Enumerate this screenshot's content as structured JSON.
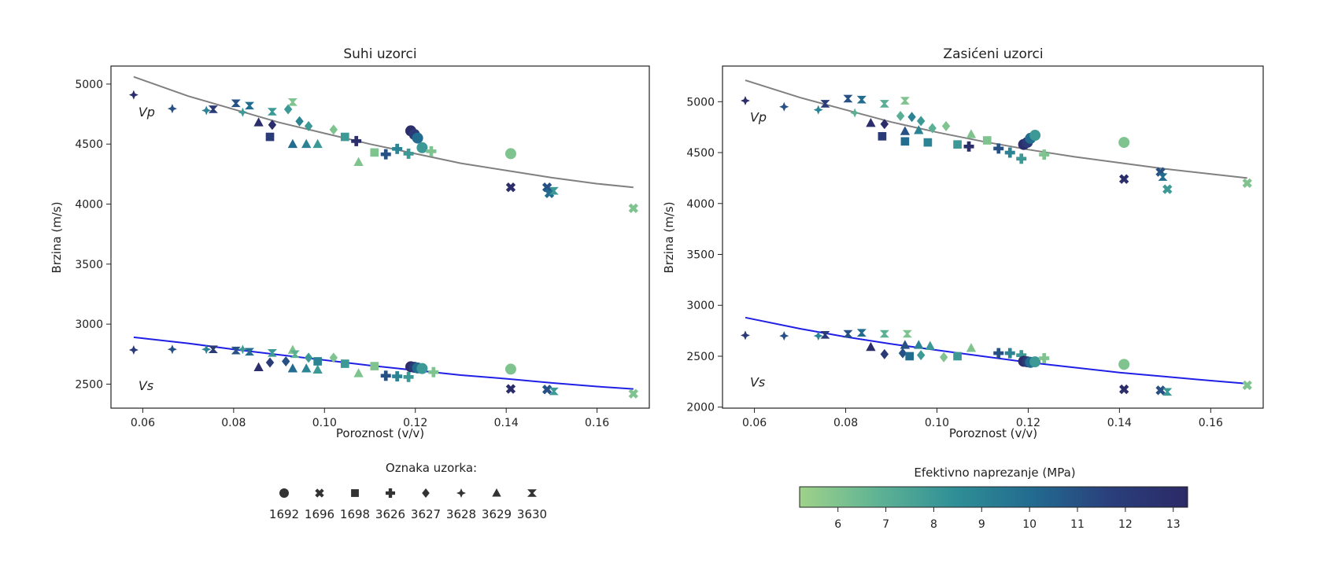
{
  "colors": {
    "fit_vp": "#808080",
    "fit_vs": "#1f1fe6",
    "cmap": [
      "#9fd28a",
      "#5fb394",
      "#2f8f96",
      "#226b8f",
      "#2a3f7c",
      "#2b2a66"
    ]
  },
  "legend": {
    "title": "Oznaka uzorka:",
    "items": [
      {
        "label": "1692",
        "marker": "circle"
      },
      {
        "label": "1696",
        "marker": "x"
      },
      {
        "label": "1698",
        "marker": "square"
      },
      {
        "label": "3626",
        "marker": "plus"
      },
      {
        "label": "3627",
        "marker": "diamond"
      },
      {
        "label": "3628",
        "marker": "star"
      },
      {
        "label": "3629",
        "marker": "triangle"
      },
      {
        "label": "3630",
        "marker": "bowtie"
      }
    ]
  },
  "colorbar": {
    "title": "Efektivno naprezanje (MPa)",
    "min": 5.2,
    "max": 13.3,
    "ticks": [
      "6",
      "7",
      "8",
      "9",
      "10",
      "11",
      "12",
      "13"
    ]
  },
  "chart_data": [
    {
      "type": "scatter",
      "title": "Suhi uzorci",
      "xlabel": "Poroznost (v/v)",
      "ylabel": "Brzina (m/s)",
      "xlim": [
        0.053,
        0.1715
      ],
      "ylim": [
        2300,
        5150
      ],
      "xticks": [
        "0.06",
        "0.08",
        "0.10",
        "0.12",
        "0.14",
        "0.16"
      ],
      "yticks": [
        "2500",
        "3000",
        "3500",
        "4000",
        "4500",
        "5000"
      ],
      "annotations": [
        {
          "text": "Vp",
          "x": 0.058,
          "y": 4770
        },
        {
          "text": "Vs",
          "x": 0.058,
          "y": 2490
        }
      ],
      "fits": [
        {
          "name": "Vp",
          "x": [
            0.058,
            0.07,
            0.08,
            0.09,
            0.1,
            0.11,
            0.12,
            0.13,
            0.14,
            0.15,
            0.16,
            0.168
          ],
          "y": [
            5060,
            4900,
            4790,
            4680,
            4590,
            4500,
            4420,
            4340,
            4280,
            4220,
            4170,
            4140
          ]
        },
        {
          "name": "Vs",
          "x": [
            0.058,
            0.07,
            0.08,
            0.09,
            0.1,
            0.11,
            0.12,
            0.13,
            0.14,
            0.15,
            0.16,
            0.168
          ],
          "y": [
            2890,
            2840,
            2790,
            2745,
            2700,
            2655,
            2615,
            2575,
            2545,
            2510,
            2480,
            2460
          ]
        }
      ],
      "points": [
        {
          "x": 0.058,
          "y": 4910,
          "m": "star",
          "s": 13
        },
        {
          "x": 0.0665,
          "y": 4795,
          "m": "star",
          "s": 11
        },
        {
          "x": 0.074,
          "y": 4780,
          "m": "star",
          "s": 9
        },
        {
          "x": 0.0755,
          "y": 4790,
          "m": "bowtie",
          "s": 12
        },
        {
          "x": 0.0805,
          "y": 4840,
          "m": "bowtie",
          "s": 11
        },
        {
          "x": 0.082,
          "y": 4765,
          "m": "star",
          "s": 8
        },
        {
          "x": 0.0835,
          "y": 4820,
          "m": "bowtie",
          "s": 10
        },
        {
          "x": 0.0855,
          "y": 4680,
          "m": "triangle",
          "s": 13
        },
        {
          "x": 0.0885,
          "y": 4660,
          "m": "diamond",
          "s": 13
        },
        {
          "x": 0.088,
          "y": 4560,
          "m": "square",
          "s": 12
        },
        {
          "x": 0.0885,
          "y": 4770,
          "m": "bowtie",
          "s": 8
        },
        {
          "x": 0.092,
          "y": 4790,
          "m": "diamond",
          "s": 8
        },
        {
          "x": 0.093,
          "y": 4850,
          "m": "bowtie",
          "s": 6
        },
        {
          "x": 0.093,
          "y": 4500,
          "m": "triangle",
          "s": 10
        },
        {
          "x": 0.0945,
          "y": 4690,
          "m": "diamond",
          "s": 9
        },
        {
          "x": 0.096,
          "y": 4500,
          "m": "triangle",
          "s": 9
        },
        {
          "x": 0.0965,
          "y": 4650,
          "m": "diamond",
          "s": 8
        },
        {
          "x": 0.0985,
          "y": 4500,
          "m": "triangle",
          "s": 8
        },
        {
          "x": 0.102,
          "y": 4620,
          "m": "diamond",
          "s": 6
        },
        {
          "x": 0.1045,
          "y": 4560,
          "m": "square",
          "s": 8
        },
        {
          "x": 0.107,
          "y": 4525,
          "m": "plus",
          "s": 13
        },
        {
          "x": 0.1075,
          "y": 4350,
          "m": "triangle",
          "s": 6
        },
        {
          "x": 0.111,
          "y": 4430,
          "m": "square",
          "s": 6
        },
        {
          "x": 0.1135,
          "y": 4415,
          "m": "plus",
          "s": 11
        },
        {
          "x": 0.116,
          "y": 4460,
          "m": "plus",
          "s": 9
        },
        {
          "x": 0.1185,
          "y": 4420,
          "m": "plus",
          "s": 8
        },
        {
          "x": 0.119,
          "y": 4610,
          "m": "circle",
          "s": 13
        },
        {
          "x": 0.1198,
          "y": 4580,
          "m": "circle",
          "s": 12
        },
        {
          "x": 0.1205,
          "y": 4550,
          "m": "circle",
          "s": 10
        },
        {
          "x": 0.1215,
          "y": 4470,
          "m": "circle",
          "s": 8
        },
        {
          "x": 0.1235,
          "y": 4440,
          "m": "plus",
          "s": 6
        },
        {
          "x": 0.141,
          "y": 4420,
          "m": "circle",
          "s": 6
        },
        {
          "x": 0.141,
          "y": 4140,
          "m": "x",
          "s": 13
        },
        {
          "x": 0.149,
          "y": 4140,
          "m": "x",
          "s": 11
        },
        {
          "x": 0.1495,
          "y": 4090,
          "m": "x",
          "s": 10
        },
        {
          "x": 0.1505,
          "y": 4110,
          "m": "bowtie",
          "s": 8
        },
        {
          "x": 0.168,
          "y": 3965,
          "m": "x",
          "s": 6
        },
        {
          "x": 0.058,
          "y": 2785,
          "m": "star",
          "s": 12
        },
        {
          "x": 0.0665,
          "y": 2790,
          "m": "star",
          "s": 11
        },
        {
          "x": 0.074,
          "y": 2790,
          "m": "star",
          "s": 9
        },
        {
          "x": 0.0755,
          "y": 2790,
          "m": "bowtie",
          "s": 12
        },
        {
          "x": 0.0805,
          "y": 2780,
          "m": "bowtie",
          "s": 11
        },
        {
          "x": 0.082,
          "y": 2790,
          "m": "star",
          "s": 8
        },
        {
          "x": 0.0835,
          "y": 2770,
          "m": "bowtie",
          "s": 10
        },
        {
          "x": 0.0855,
          "y": 2640,
          "m": "triangle",
          "s": 13
        },
        {
          "x": 0.088,
          "y": 2680,
          "m": "diamond",
          "s": 12
        },
        {
          "x": 0.0885,
          "y": 2760,
          "m": "bowtie",
          "s": 8
        },
        {
          "x": 0.0915,
          "y": 2690,
          "m": "diamond",
          "s": 11
        },
        {
          "x": 0.093,
          "y": 2785,
          "m": "triangle",
          "s": 6
        },
        {
          "x": 0.093,
          "y": 2630,
          "m": "triangle",
          "s": 10
        },
        {
          "x": 0.0935,
          "y": 2750,
          "m": "bowtie",
          "s": 7
        },
        {
          "x": 0.096,
          "y": 2630,
          "m": "triangle",
          "s": 9
        },
        {
          "x": 0.0965,
          "y": 2720,
          "m": "diamond",
          "s": 8
        },
        {
          "x": 0.0985,
          "y": 2620,
          "m": "triangle",
          "s": 8
        },
        {
          "x": 0.0985,
          "y": 2690,
          "m": "square",
          "s": 9
        },
        {
          "x": 0.102,
          "y": 2720,
          "m": "diamond",
          "s": 6
        },
        {
          "x": 0.1045,
          "y": 2670,
          "m": "square",
          "s": 8
        },
        {
          "x": 0.1075,
          "y": 2590,
          "m": "triangle",
          "s": 6
        },
        {
          "x": 0.111,
          "y": 2650,
          "m": "square",
          "s": 6
        },
        {
          "x": 0.1135,
          "y": 2570,
          "m": "plus",
          "s": 11
        },
        {
          "x": 0.116,
          "y": 2565,
          "m": "plus",
          "s": 9
        },
        {
          "x": 0.1185,
          "y": 2560,
          "m": "plus",
          "s": 8
        },
        {
          "x": 0.119,
          "y": 2645,
          "m": "circle",
          "s": 13
        },
        {
          "x": 0.1198,
          "y": 2640,
          "m": "circle",
          "s": 12
        },
        {
          "x": 0.1205,
          "y": 2635,
          "m": "circle",
          "s": 10
        },
        {
          "x": 0.1215,
          "y": 2630,
          "m": "circle",
          "s": 8
        },
        {
          "x": 0.124,
          "y": 2600,
          "m": "plus",
          "s": 6
        },
        {
          "x": 0.141,
          "y": 2625,
          "m": "circle",
          "s": 6
        },
        {
          "x": 0.141,
          "y": 2460,
          "m": "x",
          "s": 13
        },
        {
          "x": 0.149,
          "y": 2455,
          "m": "x",
          "s": 11
        },
        {
          "x": 0.1505,
          "y": 2440,
          "m": "bowtie",
          "s": 8
        },
        {
          "x": 0.168,
          "y": 2420,
          "m": "x",
          "s": 6
        }
      ]
    },
    {
      "type": "scatter",
      "title": "Zasićeni uzorci",
      "xlabel": "Poroznost (v/v)",
      "ylabel": "Brzina (m/s)",
      "xlim": [
        0.053,
        0.1715
      ],
      "ylim": [
        1990,
        5350
      ],
      "xticks": [
        "0.06",
        "0.08",
        "0.10",
        "0.12",
        "0.14",
        "0.16"
      ],
      "yticks": [
        "2000",
        "2500",
        "3000",
        "3500",
        "4000",
        "4500",
        "5000"
      ],
      "annotations": [
        {
          "text": "Vp",
          "x": 0.058,
          "y": 4850
        },
        {
          "text": "Vs",
          "x": 0.058,
          "y": 2250
        }
      ],
      "fits": [
        {
          "name": "Vp",
          "x": [
            0.058,
            0.07,
            0.08,
            0.09,
            0.1,
            0.11,
            0.12,
            0.13,
            0.14,
            0.15,
            0.16,
            0.168
          ],
          "y": [
            5210,
            5040,
            4920,
            4800,
            4700,
            4610,
            4530,
            4460,
            4400,
            4340,
            4290,
            4250
          ]
        },
        {
          "name": "Vs",
          "x": [
            0.058,
            0.07,
            0.08,
            0.09,
            0.1,
            0.11,
            0.12,
            0.13,
            0.14,
            0.15,
            0.16,
            0.168
          ],
          "y": [
            2880,
            2770,
            2690,
            2620,
            2560,
            2500,
            2440,
            2390,
            2340,
            2300,
            2260,
            2230
          ]
        }
      ],
      "points": [
        {
          "x": 0.058,
          "y": 5010,
          "m": "star",
          "s": 13
        },
        {
          "x": 0.0665,
          "y": 4950,
          "m": "star",
          "s": 11
        },
        {
          "x": 0.074,
          "y": 4920,
          "m": "star",
          "s": 9
        },
        {
          "x": 0.0755,
          "y": 4980,
          "m": "bowtie",
          "s": 12
        },
        {
          "x": 0.0805,
          "y": 5030,
          "m": "bowtie",
          "s": 11
        },
        {
          "x": 0.0835,
          "y": 5020,
          "m": "bowtie",
          "s": 10
        },
        {
          "x": 0.082,
          "y": 4890,
          "m": "star",
          "s": 7
        },
        {
          "x": 0.0855,
          "y": 4790,
          "m": "triangle",
          "s": 13
        },
        {
          "x": 0.0885,
          "y": 4780,
          "m": "diamond",
          "s": 13
        },
        {
          "x": 0.088,
          "y": 4660,
          "m": "square",
          "s": 12
        },
        {
          "x": 0.0885,
          "y": 4980,
          "m": "bowtie",
          "s": 7
        },
        {
          "x": 0.092,
          "y": 4860,
          "m": "diamond",
          "s": 7
        },
        {
          "x": 0.093,
          "y": 5010,
          "m": "bowtie",
          "s": 6
        },
        {
          "x": 0.093,
          "y": 4710,
          "m": "triangle",
          "s": 11
        },
        {
          "x": 0.093,
          "y": 4610,
          "m": "square",
          "s": 10
        },
        {
          "x": 0.0945,
          "y": 4850,
          "m": "diamond",
          "s": 9
        },
        {
          "x": 0.096,
          "y": 4720,
          "m": "triangle",
          "s": 9
        },
        {
          "x": 0.0965,
          "y": 4810,
          "m": "diamond",
          "s": 8
        },
        {
          "x": 0.098,
          "y": 4600,
          "m": "square",
          "s": 9
        },
        {
          "x": 0.099,
          "y": 4740,
          "m": "diamond",
          "s": 7
        },
        {
          "x": 0.102,
          "y": 4760,
          "m": "diamond",
          "s": 6
        },
        {
          "x": 0.1045,
          "y": 4580,
          "m": "square",
          "s": 8
        },
        {
          "x": 0.1075,
          "y": 4680,
          "m": "triangle",
          "s": 6
        },
        {
          "x": 0.107,
          "y": 4560,
          "m": "plus",
          "s": 13
        },
        {
          "x": 0.111,
          "y": 4620,
          "m": "square",
          "s": 6
        },
        {
          "x": 0.1135,
          "y": 4540,
          "m": "plus",
          "s": 11
        },
        {
          "x": 0.116,
          "y": 4500,
          "m": "plus",
          "s": 9
        },
        {
          "x": 0.1185,
          "y": 4440,
          "m": "plus",
          "s": 8
        },
        {
          "x": 0.119,
          "y": 4580,
          "m": "circle",
          "s": 13
        },
        {
          "x": 0.1198,
          "y": 4600,
          "m": "circle",
          "s": 12
        },
        {
          "x": 0.1205,
          "y": 4640,
          "m": "circle",
          "s": 10
        },
        {
          "x": 0.1215,
          "y": 4670,
          "m": "circle",
          "s": 8
        },
        {
          "x": 0.1235,
          "y": 4480,
          "m": "plus",
          "s": 6
        },
        {
          "x": 0.141,
          "y": 4600,
          "m": "circle",
          "s": 6
        },
        {
          "x": 0.141,
          "y": 4240,
          "m": "x",
          "s": 13
        },
        {
          "x": 0.149,
          "y": 4310,
          "m": "x",
          "s": 11
        },
        {
          "x": 0.1495,
          "y": 4260,
          "m": "bowtie",
          "s": 10
        },
        {
          "x": 0.1505,
          "y": 4140,
          "m": "x",
          "s": 8
        },
        {
          "x": 0.168,
          "y": 4200,
          "m": "x",
          "s": 6
        },
        {
          "x": 0.058,
          "y": 2705,
          "m": "star",
          "s": 12
        },
        {
          "x": 0.0665,
          "y": 2700,
          "m": "star",
          "s": 11
        },
        {
          "x": 0.074,
          "y": 2700,
          "m": "star",
          "s": 9
        },
        {
          "x": 0.0755,
          "y": 2710,
          "m": "bowtie",
          "s": 12
        },
        {
          "x": 0.0805,
          "y": 2720,
          "m": "bowtie",
          "s": 11
        },
        {
          "x": 0.0835,
          "y": 2730,
          "m": "bowtie",
          "s": 10
        },
        {
          "x": 0.0855,
          "y": 2590,
          "m": "triangle",
          "s": 13
        },
        {
          "x": 0.0885,
          "y": 2520,
          "m": "diamond",
          "s": 12
        },
        {
          "x": 0.0885,
          "y": 2720,
          "m": "bowtie",
          "s": 7
        },
        {
          "x": 0.0925,
          "y": 2530,
          "m": "diamond",
          "s": 11
        },
        {
          "x": 0.093,
          "y": 2610,
          "m": "triangle",
          "s": 11
        },
        {
          "x": 0.0935,
          "y": 2720,
          "m": "bowtie",
          "s": 6
        },
        {
          "x": 0.094,
          "y": 2500,
          "m": "square",
          "s": 10
        },
        {
          "x": 0.096,
          "y": 2610,
          "m": "triangle",
          "s": 9
        },
        {
          "x": 0.0965,
          "y": 2510,
          "m": "diamond",
          "s": 8
        },
        {
          "x": 0.0985,
          "y": 2600,
          "m": "triangle",
          "s": 8
        },
        {
          "x": 0.1015,
          "y": 2490,
          "m": "diamond",
          "s": 6
        },
        {
          "x": 0.1045,
          "y": 2500,
          "m": "square",
          "s": 8
        },
        {
          "x": 0.1075,
          "y": 2580,
          "m": "triangle",
          "s": 6
        },
        {
          "x": 0.1135,
          "y": 2530,
          "m": "plus",
          "s": 11
        },
        {
          "x": 0.116,
          "y": 2530,
          "m": "plus",
          "s": 9
        },
        {
          "x": 0.1185,
          "y": 2510,
          "m": "plus",
          "s": 8
        },
        {
          "x": 0.119,
          "y": 2450,
          "m": "circle",
          "s": 13
        },
        {
          "x": 0.1198,
          "y": 2445,
          "m": "circle",
          "s": 12
        },
        {
          "x": 0.1205,
          "y": 2440,
          "m": "circle",
          "s": 10
        },
        {
          "x": 0.1215,
          "y": 2445,
          "m": "circle",
          "s": 8
        },
        {
          "x": 0.1235,
          "y": 2480,
          "m": "plus",
          "s": 6
        },
        {
          "x": 0.141,
          "y": 2420,
          "m": "circle",
          "s": 6
        },
        {
          "x": 0.141,
          "y": 2175,
          "m": "x",
          "s": 13
        },
        {
          "x": 0.149,
          "y": 2165,
          "m": "x",
          "s": 11
        },
        {
          "x": 0.1505,
          "y": 2150,
          "m": "bowtie",
          "s": 8
        },
        {
          "x": 0.168,
          "y": 2215,
          "m": "x",
          "s": 6
        }
      ]
    }
  ]
}
